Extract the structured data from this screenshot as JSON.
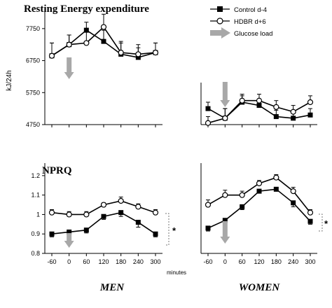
{
  "labels": {
    "ree_title": "Resting Energy expenditure",
    "nprq_title": "NPRQ",
    "ree_ylabel": "kJ/24h",
    "minutes": "minutes",
    "men": "MEN",
    "women": "WOMEN",
    "significance": "*"
  },
  "legend": {
    "control": "Control  d-4",
    "hdbr": "HDBR   d+6",
    "glucose": "Glucose load"
  },
  "colors": {
    "line": "#000000",
    "arrow": "#a8a8a8",
    "bracket": "#777777"
  },
  "chart_data": [
    {
      "type": "line",
      "title": "Resting Energy expenditure",
      "panel": "men-ree",
      "ylabel": "kJ/24h",
      "x": [
        -60,
        0,
        60,
        120,
        180,
        240,
        300
      ],
      "ylim": [
        4750,
        8250
      ],
      "yticks": [
        4750,
        5750,
        6750,
        7750
      ],
      "series": [
        {
          "name": "Control  d-4",
          "marker": "square-filled",
          "values": [
            6900,
            7250,
            7700,
            7350,
            6950,
            6850,
            7000
          ],
          "errors": [
            400,
            300,
            250,
            350,
            350,
            300,
            300
          ]
        },
        {
          "name": "HDBR   d+6",
          "marker": "circle-open",
          "values": [
            6900,
            7250,
            7300,
            7800,
            7000,
            6950,
            7000
          ],
          "errors": [
            400,
            300,
            400,
            400,
            350,
            300,
            300
          ]
        }
      ]
    },
    {
      "type": "line",
      "panel": "women-ree",
      "x": [
        -60,
        0,
        60,
        120,
        180,
        240,
        300
      ],
      "ylim": [
        4750,
        8250
      ],
      "series": [
        {
          "name": "Control  d-4",
          "marker": "square-filled",
          "values": [
            5250,
            4950,
            5450,
            5350,
            5000,
            4950,
            5050
          ],
          "errors": [
            200,
            300,
            200,
            200,
            200,
            200,
            200
          ]
        },
        {
          "name": "HDBR   d+6",
          "marker": "circle-open",
          "values": [
            4800,
            4950,
            5500,
            5500,
            5300,
            5150,
            5450
          ],
          "errors": [
            200,
            300,
            200,
            200,
            200,
            200,
            200
          ]
        }
      ]
    },
    {
      "type": "line",
      "title": "NPRQ",
      "panel": "men-nprq",
      "xlabel": "MEN",
      "x": [
        -60,
        0,
        60,
        120,
        180,
        240,
        300
      ],
      "xticks": [
        "-60",
        "0",
        "60",
        "120",
        "180",
        "240",
        "300"
      ],
      "ylim": [
        0.8,
        1.25
      ],
      "yticks": [
        0.8,
        0.9,
        1.0,
        1.1,
        1.2
      ],
      "ytick_labels": [
        "0.8",
        "0.9",
        "1",
        "1.1",
        "1.2"
      ],
      "series": [
        {
          "name": "Control  d-4",
          "marker": "square-filled",
          "values": [
            0.9,
            0.91,
            0.92,
            0.99,
            1.01,
            0.96,
            0.9
          ],
          "errors": [
            0.015,
            0.015,
            0.015,
            0.015,
            0.02,
            0.025,
            0.015
          ]
        },
        {
          "name": "HDBR   d+6",
          "marker": "circle-open",
          "values": [
            1.01,
            1.0,
            1.0,
            1.05,
            1.07,
            1.04,
            1.01
          ],
          "errors": [
            0.015,
            0.015,
            0.015,
            0.01,
            0.02,
            0.015,
            0.015
          ]
        }
      ]
    },
    {
      "type": "line",
      "panel": "women-nprq",
      "xlabel": "WOMEN",
      "x": [
        -60,
        0,
        60,
        120,
        180,
        240,
        300
      ],
      "xticks": [
        "-60",
        "0",
        "60",
        "120",
        "180",
        "240",
        "300"
      ],
      "ylim": [
        0.8,
        1.25
      ],
      "series": [
        {
          "name": "Control  d-4",
          "marker": "square-filled",
          "values": [
            0.93,
            0.97,
            1.04,
            1.12,
            1.13,
            1.06,
            0.965
          ],
          "errors": [
            0.015,
            0.02,
            0.015,
            0.01,
            0.01,
            0.02,
            0.015
          ]
        },
        {
          "name": "HDBR   d+6",
          "marker": "circle-open",
          "values": [
            1.05,
            1.1,
            1.1,
            1.16,
            1.19,
            1.12,
            1.01
          ],
          "errors": [
            0.025,
            0.025,
            0.02,
            0.015,
            0.015,
            0.02,
            0.015
          ]
        }
      ]
    }
  ]
}
